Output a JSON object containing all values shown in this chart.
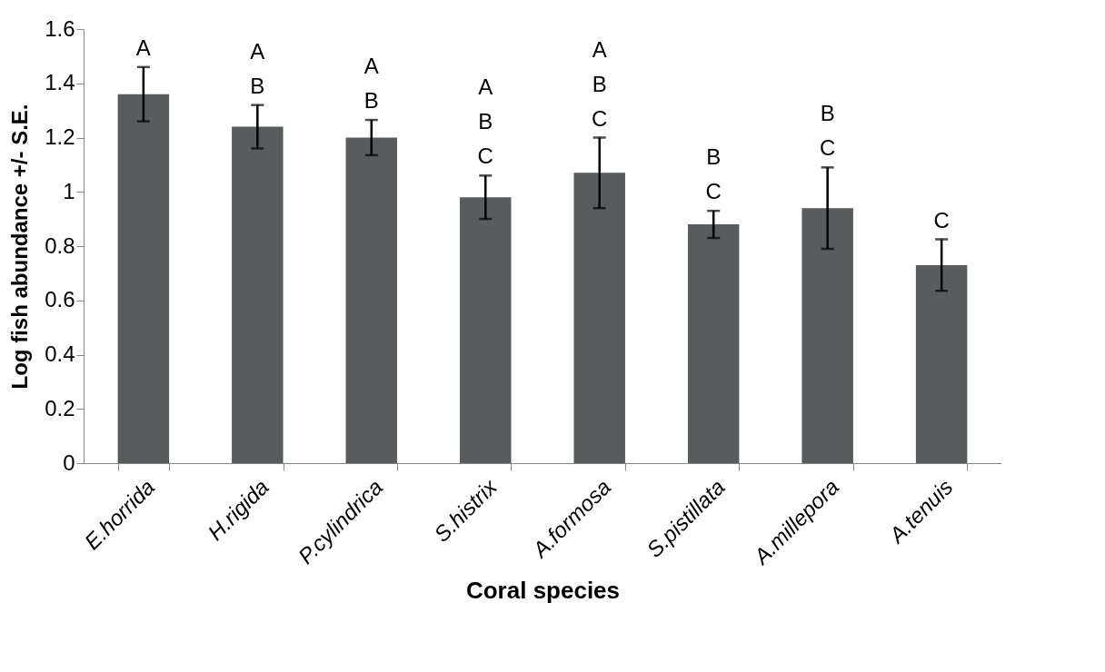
{
  "chart_data": {
    "type": "bar",
    "xlabel": "Coral species",
    "ylabel": "Log fish abundance  +/- S.E.",
    "categories": [
      "E.horrida",
      "H.rigida",
      "P.cylindrica",
      "S.histrix",
      "A.formosa",
      "S.pistillata",
      "A.millepora",
      "A.tenuis"
    ],
    "values": [
      1.36,
      1.24,
      1.2,
      0.98,
      1.07,
      0.88,
      0.94,
      0.73
    ],
    "errors": [
      0.1,
      0.08,
      0.065,
      0.08,
      0.13,
      0.05,
      0.15,
      0.095
    ],
    "color": "#595c5c",
    "ylim": [
      0,
      1.6
    ],
    "yticks": [
      0,
      0.2,
      0.4,
      0.6,
      0.8,
      1,
      1.2,
      1.4,
      1.6
    ],
    "grid": false,
    "annotations": [
      "A",
      "A\nB",
      "A\nB",
      "A\nB\nC",
      "A\nB\nC",
      "B\nC",
      "B\nC",
      "C"
    ]
  }
}
